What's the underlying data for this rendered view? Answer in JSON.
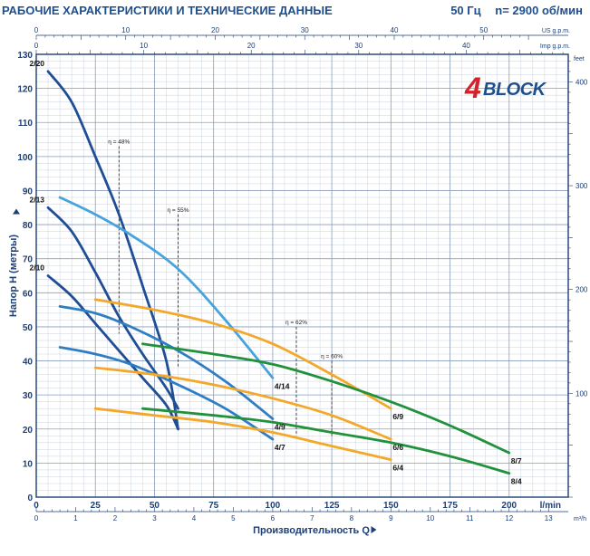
{
  "header": {
    "title": "РАБОЧИЕ ХАРАКТЕРИСТИКИ И ТЕХНИЧЕСКИЕ ДАННЫЕ",
    "freq": "50 Гц",
    "speed": "n= 2900 об/мин"
  },
  "logo": {
    "digit": "4",
    "text": "BLOCK"
  },
  "colors": {
    "dark_blue": "#1f4e96",
    "mid_blue": "#2f7ec4",
    "light_blue": "#46a3dc",
    "orange": "#f4a82a",
    "green": "#21913c",
    "frame": "#1d3f75"
  },
  "chart_data": {
    "type": "line",
    "xlabel": "Производительность Q",
    "ylabel": "Напор H (метры)",
    "x_unit": "l/min",
    "xlim": [
      0,
      225
    ],
    "ylim": [
      0,
      130
    ],
    "x_ticks": [
      0,
      25,
      50,
      75,
      100,
      125,
      150,
      175,
      200
    ],
    "y_ticks": [
      0,
      10,
      20,
      30,
      40,
      50,
      60,
      70,
      80,
      90,
      100,
      110,
      120,
      130
    ],
    "secondary_axes": {
      "m3h": {
        "label": "m³/h",
        "ticks": [
          0,
          1,
          2,
          3,
          4,
          5,
          6,
          7,
          8,
          9,
          10,
          11,
          12,
          13
        ]
      },
      "us_gpm": {
        "label": "US g.p.m.",
        "ticks": [
          0,
          10,
          20,
          30,
          40,
          50
        ]
      },
      "imp_gpm": {
        "label": "Imp g.p.m.",
        "ticks": [
          0,
          10,
          20,
          30,
          40
        ]
      },
      "feet": {
        "label": "feet",
        "ticks": [
          100,
          200,
          300,
          400
        ]
      }
    },
    "series": [
      {
        "name": "2/20",
        "color": "dark_blue",
        "x": [
          5,
          15,
          25,
          35,
          45,
          55,
          60
        ],
        "y": [
          125,
          116,
          100,
          83,
          62,
          40,
          20
        ]
      },
      {
        "name": "2/13",
        "color": "dark_blue",
        "x": [
          5,
          15,
          25,
          35,
          45,
          55,
          60
        ],
        "y": [
          85,
          78,
          66,
          53,
          42,
          32,
          26
        ]
      },
      {
        "name": "2/10",
        "color": "dark_blue",
        "x": [
          5,
          15,
          25,
          35,
          45,
          55,
          60
        ],
        "y": [
          65,
          59,
          51,
          43,
          35,
          27,
          20
        ]
      },
      {
        "name": "4/14",
        "color": "light_blue",
        "x": [
          10,
          25,
          40,
          60,
          80,
          100
        ],
        "y": [
          88,
          83,
          77,
          67,
          52,
          35
        ]
      },
      {
        "name": "4/9",
        "color": "mid_blue",
        "x": [
          10,
          25,
          40,
          60,
          80,
          100
        ],
        "y": [
          56,
          54,
          50,
          43,
          34,
          23
        ]
      },
      {
        "name": "4/7",
        "color": "mid_blue",
        "x": [
          10,
          25,
          40,
          60,
          80,
          100
        ],
        "y": [
          44,
          42,
          39,
          33,
          26,
          17
        ]
      },
      {
        "name": "6/9",
        "color": "orange",
        "x": [
          25,
          50,
          75,
          100,
          125,
          150
        ],
        "y": [
          58,
          55,
          51,
          45,
          36,
          26
        ]
      },
      {
        "name": "6/6",
        "color": "orange",
        "x": [
          25,
          50,
          75,
          100,
          125,
          150
        ],
        "y": [
          38,
          36,
          33,
          29,
          24,
          17
        ]
      },
      {
        "name": "6/4",
        "color": "orange",
        "x": [
          25,
          50,
          75,
          100,
          125,
          150
        ],
        "y": [
          26,
          24,
          22,
          19,
          15,
          11
        ]
      },
      {
        "name": "8/7",
        "color": "green",
        "x": [
          45,
          75,
          100,
          125,
          150,
          175,
          200
        ],
        "y": [
          45,
          42,
          39,
          34,
          28,
          21,
          13
        ]
      },
      {
        "name": "8/4",
        "color": "green",
        "x": [
          45,
          75,
          100,
          125,
          150,
          175,
          200
        ],
        "y": [
          26,
          24,
          22,
          19,
          16,
          12,
          7
        ]
      }
    ],
    "efficiency_markers": [
      {
        "label": "η = 48%",
        "x": 35,
        "y_top": 103,
        "y_bottom": 48
      },
      {
        "label": "η = 55%",
        "x": 60,
        "y_top": 83,
        "y_bottom": 38
      },
      {
        "label": "η = 62%",
        "x": 110,
        "y_top": 50,
        "y_bottom": 18
      },
      {
        "label": "η = 60%",
        "x": 125,
        "y_top": 40,
        "y_bottom": 18
      }
    ],
    "grid": true
  }
}
